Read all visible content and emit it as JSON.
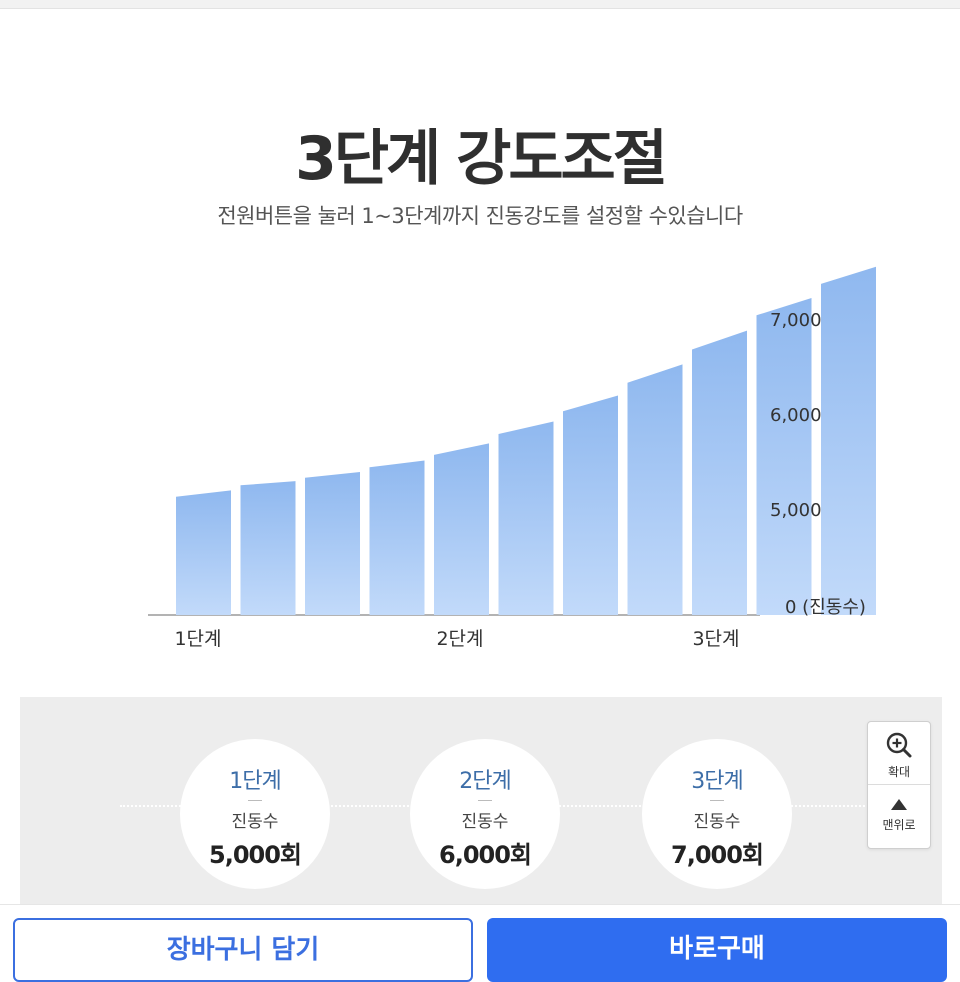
{
  "header": {
    "title": "3단계 강도조절",
    "subtitle": "전원버튼을 눌러 1~3단계까지 진동강도를 설정할 수있습니다"
  },
  "chart_data": {
    "type": "bar",
    "values": [
      5140,
      5260,
      5340,
      5450,
      5580,
      5800,
      6040,
      6340,
      6690,
      7050,
      7380
    ],
    "y_ticks": [
      {
        "value": 0,
        "label": "0"
      },
      {
        "value": 5000,
        "label": "5,000"
      },
      {
        "value": 6000,
        "label": "6,000"
      },
      {
        "value": 7000,
        "label": "7,000"
      }
    ],
    "y_unit": "(진동수)",
    "x_labels": [
      "1단계",
      "2단계",
      "3단계"
    ],
    "bar_color": "#8fb8ef",
    "bar_color_light": "#c2dafa"
  },
  "stages": [
    {
      "title": "1단계",
      "label": "진동수",
      "value": "5,000회"
    },
    {
      "title": "2단계",
      "label": "진동수",
      "value": "6,000회"
    },
    {
      "title": "3단계",
      "label": "진동수",
      "value": "7,000회"
    }
  ],
  "side_buttons": {
    "zoom_label": "확대",
    "zoom_icon": "zoom-in-icon",
    "top_label": "맨위로",
    "top_icon": "arrow-up-icon"
  },
  "actions": {
    "cart_label": "장바구니 담기",
    "buy_label": "바로구매"
  },
  "colors": {
    "accent": "#2f6df0",
    "stage_title": "#3d6ea8"
  }
}
